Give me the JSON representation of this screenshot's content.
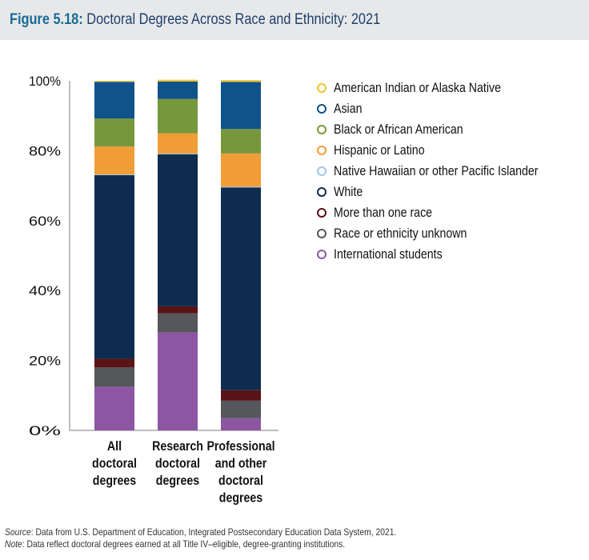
{
  "figure": {
    "label": "Figure 5.18:",
    "title": "Doctoral Degrees Across Race and Ethnicity: 2021"
  },
  "chart_data": {
    "type": "bar",
    "stacked": true,
    "title": "Doctoral Degrees Across Race and Ethnicity: 2021",
    "xlabel": "",
    "ylabel": "",
    "ylim": [
      0,
      100
    ],
    "yticks": [
      0,
      20,
      40,
      60,
      80,
      100
    ],
    "ytick_labels": [
      "0%",
      "20%",
      "40%",
      "60%",
      "80%",
      "100%"
    ],
    "categories": [
      [
        "All",
        "doctoral",
        "degrees"
      ],
      [
        "Research",
        "doctoral",
        "degrees"
      ],
      [
        "Professional",
        "and other",
        "doctoral",
        "degrees"
      ]
    ],
    "legend_position": "right",
    "series": [
      {
        "name": "International students",
        "color": "#8c56a3",
        "values": [
          12.5,
          28.0,
          3.5
        ]
      },
      {
        "name": "Race or ethnicity unknown",
        "color": "#55575a",
        "values": [
          5.5,
          5.5,
          5.0
        ]
      },
      {
        "name": "More than one race",
        "color": "#5a1416",
        "values": [
          2.5,
          2.0,
          3.0
        ]
      },
      {
        "name": "White",
        "color": "#0d2c4f",
        "values": [
          52.5,
          43.5,
          58.0
        ]
      },
      {
        "name": "Native Hawaiian or other Pacific Islander",
        "color": "#9ecae9",
        "values": [
          0.2,
          0.2,
          0.2
        ]
      },
      {
        "name": "Hispanic or Latino",
        "color": "#f09d38",
        "values": [
          8.0,
          5.8,
          9.5
        ]
      },
      {
        "name": "Black or African American",
        "color": "#77973d",
        "values": [
          8.0,
          9.8,
          7.0
        ]
      },
      {
        "name": "Asian",
        "color": "#0f538a",
        "values": [
          10.5,
          5.0,
          13.5
        ]
      },
      {
        "name": "American Indian or Alaska Native",
        "color": "#f4c430",
        "values": [
          0.3,
          0.5,
          0.5
        ]
      }
    ]
  },
  "legend": [
    {
      "label": "American Indian or Alaska Native",
      "color": "#f4c430"
    },
    {
      "label": "Asian",
      "color": "#0f538a"
    },
    {
      "label": "Black or African American",
      "color": "#77973d"
    },
    {
      "label": "Hispanic or Latino",
      "color": "#f09d38"
    },
    {
      "label": "Native Hawaiian or other Pacific Islander",
      "color": "#9ecae9"
    },
    {
      "label": "White",
      "color": "#0d2c4f"
    },
    {
      "label": "More than one race",
      "color": "#5a1416"
    },
    {
      "label": "Race or ethnicity unknown",
      "color": "#55575a"
    },
    {
      "label": "International students",
      "color": "#8c56a3"
    }
  ],
  "footer": {
    "source_label": "Source",
    "source_text": ": Data from U.S. Department of Education, Integrated Postsecondary Education Data System, 2021.",
    "note_label": "Note",
    "note_text": ": Data reflect doctoral degrees earned at all Title IV–eligible, degree-granting institutions."
  }
}
